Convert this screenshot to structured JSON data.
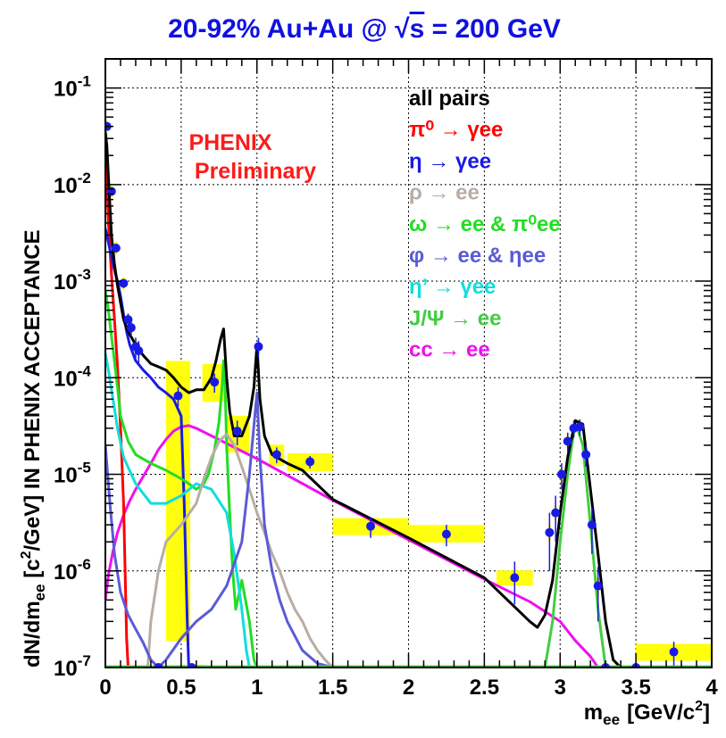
{
  "chart_data": {
    "type": "line",
    "title": {
      "prefix": "20-92% Au+Au @ ",
      "sqrt": "√",
      "s": "s",
      "suffix": " = 200 GeV"
    },
    "title_color": "#1010e0",
    "watermark": [
      "PHENIX",
      "Preliminary"
    ],
    "watermark_color": "#ff1a1a",
    "xlabel": {
      "main": "m",
      "sub": "ee",
      "units": "[GeV/c",
      "sup": "2",
      "close": "]"
    },
    "ylabel": {
      "p1": "dN/dm",
      "sub": "ee",
      "p2": " [c",
      "sup": "2",
      "p3": "/GeV] IN PHENIX ACCEPTANCE"
    },
    "xlim": [
      0,
      4
    ],
    "ylim": [
      1e-07,
      0.2
    ],
    "yscale": "log",
    "grid": true,
    "xticks": [
      {
        "v": 0,
        "label": "0"
      },
      {
        "v": 0.5,
        "label": "0.5"
      },
      {
        "v": 1,
        "label": "1"
      },
      {
        "v": 1.5,
        "label": "1.5"
      },
      {
        "v": 2,
        "label": "2"
      },
      {
        "v": 2.5,
        "label": "2.5"
      },
      {
        "v": 3,
        "label": "3"
      },
      {
        "v": 3.5,
        "label": "3.5"
      },
      {
        "v": 4,
        "label": "4"
      }
    ],
    "yticks": [
      {
        "v": 1e-07,
        "exp": "-7"
      },
      {
        "v": 1e-06,
        "exp": "-6"
      },
      {
        "v": 1e-05,
        "exp": "-5"
      },
      {
        "v": 0.0001,
        "exp": "-4"
      },
      {
        "v": 0.001,
        "exp": "-3"
      },
      {
        "v": 0.01,
        "exp": "-2"
      },
      {
        "v": 0.1,
        "exp": "-1"
      }
    ],
    "ytick_base": "10",
    "legend": [
      {
        "label": "all pairs",
        "color": "#000000"
      },
      {
        "label": "π⁰ → γee",
        "color": "#ff0000"
      },
      {
        "label": "η → γee",
        "color": "#1a1ae6"
      },
      {
        "label": "ρ → ee",
        "color": "#b8ada5"
      },
      {
        "label": "ω → ee & π⁰ee",
        "color": "#22dd22"
      },
      {
        "label": "φ → ee & ηee",
        "color": "#5b5bd6"
      },
      {
        "label": "η’ → γee",
        "color": "#11dddd"
      },
      {
        "label": "J/Ψ → ee",
        "color": "#44cc44"
      },
      {
        "label": "cc → ee",
        "color": "#ee11ee"
      }
    ],
    "series": [
      {
        "name": "cc → ee",
        "color": "#ee11ee",
        "x": [
          0.0,
          0.02,
          0.05,
          0.08,
          0.12,
          0.16,
          0.2,
          0.25,
          0.3,
          0.35,
          0.4,
          0.45,
          0.5,
          0.55,
          0.6,
          1.0,
          1.5,
          2.0,
          2.5,
          2.8,
          3.0,
          3.1,
          3.2,
          3.25,
          3.3,
          3.5,
          4.0
        ],
        "y": [
          5e-07,
          9e-07,
          1.6e-06,
          2.5e-06,
          3.8e-06,
          5.3e-06,
          7e-06,
          9.5e-06,
          1.3e-05,
          1.8e-05,
          2.3e-05,
          2.8e-05,
          3.1e-05,
          3.2e-05,
          3e-05,
          1.45e-05,
          5.4e-06,
          2.1e-06,
          8.2e-07,
          4.8e-07,
          3e-07,
          1.9e-07,
          1.3e-07,
          1e-07,
          1e-07,
          1e-07,
          1e-07
        ]
      },
      {
        "name": "π⁰ → γee",
        "color": "#ff0000",
        "x": [
          0.0,
          0.01,
          0.02,
          0.04,
          0.06,
          0.08,
          0.1,
          0.12,
          0.13,
          0.14,
          0.15
        ],
        "y": [
          0.03,
          0.012,
          0.004,
          0.0012,
          0.0004,
          0.00013,
          3e-05,
          5e-06,
          1e-06,
          2e-07,
          1e-07
        ]
      },
      {
        "name": "η → γee",
        "color": "#1a1ae6",
        "x": [
          0.0,
          0.01,
          0.02,
          0.04,
          0.06,
          0.08,
          0.1,
          0.12,
          0.14,
          0.16,
          0.2,
          0.25,
          0.3,
          0.35,
          0.4,
          0.45,
          0.5,
          0.52,
          0.54,
          0.55
        ],
        "y": [
          0.0035,
          0.003,
          0.0025,
          0.0018,
          0.0013,
          0.001,
          0.0007,
          0.00045,
          0.0003,
          0.00022,
          0.00015,
          0.00012,
          0.0001,
          8e-05,
          7e-05,
          6e-05,
          4e-05,
          5e-06,
          3e-07,
          1e-07
        ]
      },
      {
        "name": "ω → ee & π⁰ee",
        "color": "#22dd22",
        "x": [
          0.0,
          0.02,
          0.05,
          0.08,
          0.1,
          0.15,
          0.2,
          0.3,
          0.4,
          0.5,
          0.55,
          0.6,
          0.65,
          0.68,
          0.72,
          0.75,
          0.77,
          0.78,
          0.79,
          0.8,
          0.82,
          0.84,
          0.86,
          0.9,
          0.95,
          0.98,
          1.0
        ],
        "y": [
          0.0008,
          0.0005,
          0.0002,
          8e-05,
          4e-05,
          2.2e-05,
          1.6e-05,
          1.3e-05,
          1.1e-05,
          9e-06,
          8e-06,
          7e-06,
          8e-06,
          1e-05,
          1.8e-05,
          3.5e-05,
          8e-05,
          0.00015,
          8e-05,
          2e-05,
          4e-06,
          1e-06,
          4e-07,
          8e-07,
          3e-07,
          1.2e-07,
          1e-07
        ]
      },
      {
        "name": "η’ → γee",
        "color": "#11dddd",
        "x": [
          0.0,
          0.02,
          0.05,
          0.08,
          0.12,
          0.2,
          0.3,
          0.4,
          0.5,
          0.6,
          0.7,
          0.8,
          0.85,
          0.9,
          0.93,
          0.95
        ],
        "y": [
          0.00018,
          0.00012,
          6e-05,
          3e-05,
          1.5e-05,
          8e-06,
          5e-06,
          5e-06,
          6e-06,
          8e-06,
          7e-06,
          4e-06,
          1.5e-06,
          4e-07,
          1.5e-07,
          1e-07
        ]
      },
      {
        "name": "ρ → ee",
        "color": "#b8ada5",
        "x": [
          0.28,
          0.3,
          0.35,
          0.4,
          0.5,
          0.6,
          0.65,
          0.7,
          0.75,
          0.8,
          0.85,
          0.9,
          0.95,
          1.0,
          1.05,
          1.1,
          1.15,
          1.2,
          1.25,
          1.3,
          1.35,
          1.4,
          1.45,
          1.5
        ],
        "y": [
          1e-07,
          3e-07,
          1e-06,
          2e-06,
          3e-06,
          5e-06,
          9e-06,
          1.5e-05,
          2.2e-05,
          2.6e-05,
          2e-05,
          1.2e-05,
          7e-06,
          4e-06,
          2.5e-06,
          1.5e-06,
          1e-06,
          6e-07,
          4e-07,
          3e-07,
          2e-07,
          1.5e-07,
          1.2e-07,
          1e-07
        ]
      },
      {
        "name": "φ → ee & ηee",
        "color": "#5b5bd6",
        "x": [
          0.0,
          0.03,
          0.06,
          0.1,
          0.15,
          0.2,
          0.25,
          0.3,
          0.35,
          0.4,
          0.5,
          0.6,
          0.7,
          0.8,
          0.9,
          0.95,
          1.0,
          1.02,
          1.05,
          1.1,
          1.15,
          1.2,
          1.3,
          1.4,
          1.5
        ],
        "y": [
          2e-05,
          5e-06,
          1.5e-06,
          6e-07,
          3.5e-07,
          2.5e-07,
          1.8e-07,
          1.2e-07,
          1e-07,
          1.2e-07,
          2e-07,
          3e-07,
          4e-07,
          7e-07,
          2e-06,
          1e-05,
          7e-05,
          1.5e-05,
          3e-06,
          1e-06,
          5e-07,
          3e-07,
          1.5e-07,
          1.1e-07,
          1e-07
        ]
      },
      {
        "name": "J/Ψ → ee",
        "color": "#44cc44",
        "x": [
          2.9,
          2.95,
          3.0,
          3.05,
          3.1,
          3.15,
          3.2,
          3.25,
          3.3
        ],
        "y": [
          1e-07,
          3e-07,
          2e-06,
          1e-05,
          3.5e-05,
          2e-05,
          3e-06,
          4e-07,
          1e-07
        ]
      },
      {
        "name": "all pairs",
        "color": "#000000",
        "x": [
          0.0,
          0.01,
          0.02,
          0.03,
          0.04,
          0.06,
          0.08,
          0.1,
          0.12,
          0.15,
          0.2,
          0.25,
          0.3,
          0.35,
          0.4,
          0.45,
          0.5,
          0.55,
          0.6,
          0.65,
          0.7,
          0.73,
          0.76,
          0.78,
          0.8,
          0.82,
          0.85,
          0.9,
          0.95,
          0.98,
          1.0,
          1.02,
          1.05,
          1.1,
          1.2,
          1.3,
          1.5,
          2.0,
          2.5,
          2.8,
          2.85,
          2.9,
          2.95,
          3.0,
          3.05,
          3.1,
          3.15,
          3.2,
          3.25,
          3.3,
          3.35,
          3.4
        ],
        "y": [
          0.035,
          0.025,
          0.012,
          0.006,
          0.003,
          0.0015,
          0.0009,
          0.0006,
          0.0004,
          0.0003,
          0.00022,
          0.00017,
          0.00014,
          0.00013,
          0.00012,
          0.0001,
          8e-05,
          7e-05,
          7.5e-05,
          7.5e-05,
          0.0001,
          0.00015,
          0.00025,
          0.00032,
          0.0001,
          4.5e-05,
          2.5e-05,
          2.5e-05,
          4e-05,
          8e-05,
          0.00022,
          6e-05,
          2.5e-05,
          1.6e-05,
          1.3e-05,
          1.1e-05,
          5.5e-06,
          2.2e-06,
          8.5e-07,
          3e-07,
          2.6e-07,
          3.5e-07,
          8e-07,
          4e-06,
          1.5e-05,
          3.6e-05,
          3.3e-05,
          7e-06,
          1.5e-06,
          3e-07,
          1.2e-07,
          1e-07
        ]
      }
    ],
    "data_points": {
      "name": "PHENIX data",
      "color": "#1a1ae6",
      "points": [
        {
          "x": 0.01,
          "y": 0.04,
          "yerr": 0.003,
          "sys_lo": 0.037,
          "sys_hi": 0.043
        },
        {
          "x": 0.04,
          "y": 0.0085,
          "yerr": 0.0005,
          "sys_lo": 0.0079,
          "sys_hi": 0.0091
        },
        {
          "x": 0.07,
          "y": 0.0022,
          "yerr": 0.0002,
          "sys_lo": 0.002,
          "sys_hi": 0.0024
        },
        {
          "x": 0.12,
          "y": 0.00095,
          "yerr": 0.0001,
          "sys_lo": 0.00087,
          "sys_hi": 0.00103
        },
        {
          "x": 0.15,
          "y": 0.0004,
          "yerr": 6e-05,
          "sys_lo": 0.00036,
          "sys_hi": 0.00044
        },
        {
          "x": 0.17,
          "y": 0.00033,
          "yerr": 6e-05,
          "sys_lo": 0.0003,
          "sys_hi": 0.00036
        },
        {
          "x": 0.2,
          "y": 0.00021,
          "yerr": 5e-05,
          "sys_lo": 0.00019,
          "sys_hi": 0.00023
        },
        {
          "x": 0.22,
          "y": 0.00019,
          "yerr": 5e-05,
          "sys_lo": 0.00017,
          "sys_hi": 0.00021
        },
        {
          "x": 0.35,
          "y": 1e-07,
          "yerr": 0,
          "sys_lo": 1e-07,
          "sys_hi": 1e-07
        },
        {
          "x": 0.48,
          "y": 6.5e-05,
          "yerr": 1.5e-05,
          "sys_lo": 2e-07,
          "sys_hi": 0.00014
        },
        {
          "x": 0.57,
          "y": 1e-07,
          "yerr": 0,
          "sys_lo": 1e-07,
          "sys_hi": 1e-07
        },
        {
          "x": 0.72,
          "y": 9e-05,
          "yerr": 2e-05,
          "sys_lo": 6e-05,
          "sys_hi": 0.00013
        },
        {
          "x": 0.87,
          "y": 2.8e-05,
          "yerr": 8e-06,
          "sys_lo": 1.8e-05,
          "sys_hi": 3.8e-05
        },
        {
          "x": 1.01,
          "y": 0.00021,
          "yerr": 5e-05,
          "sys_lo": 0.00019,
          "sys_hi": 0.00023
        },
        {
          "x": 1.13,
          "y": 1.6e-05,
          "yerr": 3e-06,
          "sys_lo": 1.3e-05,
          "sys_hi": 1.9e-05
        },
        {
          "x": 1.35,
          "y": 1.35e-05,
          "yerr": 2e-06,
          "sys_lo": 1.15e-05,
          "sys_hi": 1.55e-05
        },
        {
          "x": 1.75,
          "y": 2.9e-06,
          "yerr": 7e-07,
          "sys_lo": 2.5e-06,
          "sys_hi": 3.3e-06
        },
        {
          "x": 2.25,
          "y": 2.4e-06,
          "yerr": 6e-07,
          "sys_lo": 2.1e-06,
          "sys_hi": 2.8e-06
        },
        {
          "x": 2.7,
          "y": 8.5e-07,
          "yerr": 4e-07,
          "sys_lo": 7.5e-07,
          "sys_hi": 9.5e-07
        },
        {
          "x": 2.93,
          "y": 2.5e-06,
          "yerr": 1.5e-06,
          "sys_lo": 2.2e-06,
          "sys_hi": 2.8e-06
        },
        {
          "x": 2.97,
          "y": 4e-06,
          "yerr": 2e-06,
          "sys_lo": 3.6e-06,
          "sys_hi": 4.4e-06
        },
        {
          "x": 3.01,
          "y": 1e-05,
          "yerr": 3e-06,
          "sys_lo": 9e-06,
          "sys_hi": 1.1e-05
        },
        {
          "x": 3.05,
          "y": 2.2e-05,
          "yerr": 5e-06,
          "sys_lo": 2e-05,
          "sys_hi": 2.4e-05
        },
        {
          "x": 3.09,
          "y": 3e-05,
          "yerr": 6e-06,
          "sys_lo": 2.7e-05,
          "sys_hi": 3.3e-05
        },
        {
          "x": 3.13,
          "y": 3.1e-05,
          "yerr": 6e-06,
          "sys_lo": 2.8e-05,
          "sys_hi": 3.4e-05
        },
        {
          "x": 3.17,
          "y": 1.6e-05,
          "yerr": 4e-06,
          "sys_lo": 1.4e-05,
          "sys_hi": 1.8e-05
        },
        {
          "x": 3.21,
          "y": 3e-06,
          "yerr": 1.5e-06,
          "sys_lo": 2.7e-06,
          "sys_hi": 3.3e-06
        },
        {
          "x": 3.25,
          "y": 7e-07,
          "yerr": 4e-07,
          "sys_lo": 6e-07,
          "sys_hi": 8e-07
        },
        {
          "x": 3.3,
          "y": 1e-07,
          "yerr": 0,
          "sys_lo": 1e-07,
          "sys_hi": 1e-07
        },
        {
          "x": 3.5,
          "y": 1e-07,
          "yerr": 0,
          "sys_lo": 1e-07,
          "sys_hi": 1e-07
        },
        {
          "x": 3.75,
          "y": 1.45e-07,
          "yerr": 4e-08,
          "sys_lo": 1.25e-07,
          "sys_hi": 1.65e-07
        }
      ]
    },
    "sys_color": "#ffff00"
  }
}
